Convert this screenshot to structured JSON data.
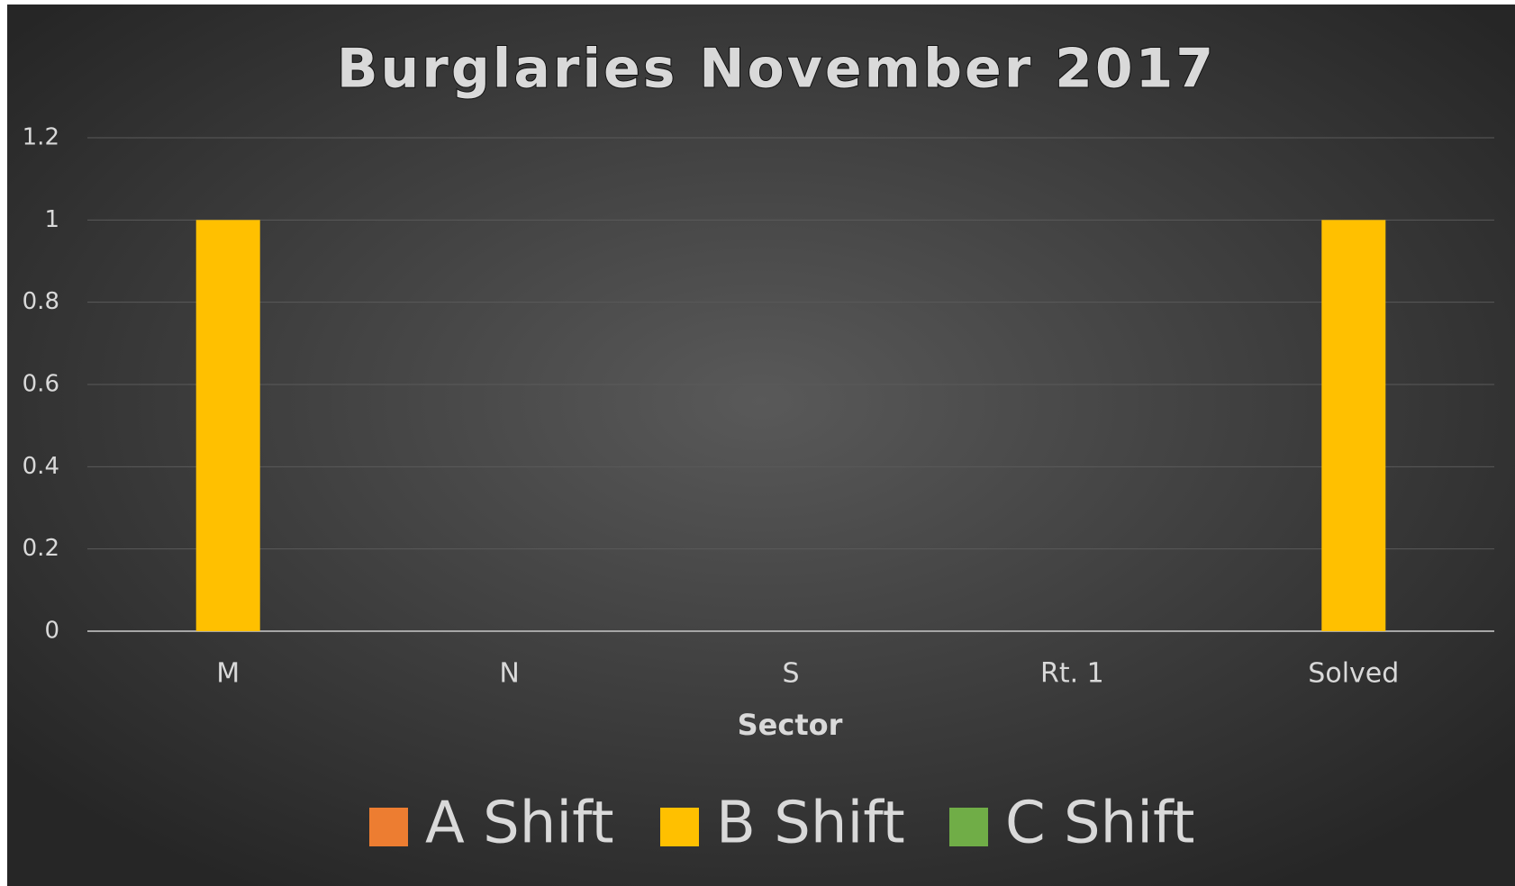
{
  "chart_data": {
    "type": "bar",
    "title": "Burglaries November 2017",
    "x_label": "Sector",
    "categories": [
      "M",
      "N",
      "S",
      "Rt. 1",
      "Solved"
    ],
    "series": [
      {
        "name": "A Shift",
        "color": "#ed7d31",
        "values": [
          0,
          0,
          0,
          0,
          0
        ]
      },
      {
        "name": "B Shift",
        "color": "#ffc000",
        "values": [
          1,
          0,
          0,
          0,
          1
        ]
      },
      {
        "name": "C Shift",
        "color": "#70ad47",
        "values": [
          0,
          0,
          0,
          0,
          0
        ]
      }
    ],
    "ylim": [
      0,
      1.2
    ],
    "yticks": [
      0,
      0.2,
      0.4,
      0.6,
      0.8,
      1,
      1.2
    ],
    "grid": true,
    "legend": "bottom"
  }
}
